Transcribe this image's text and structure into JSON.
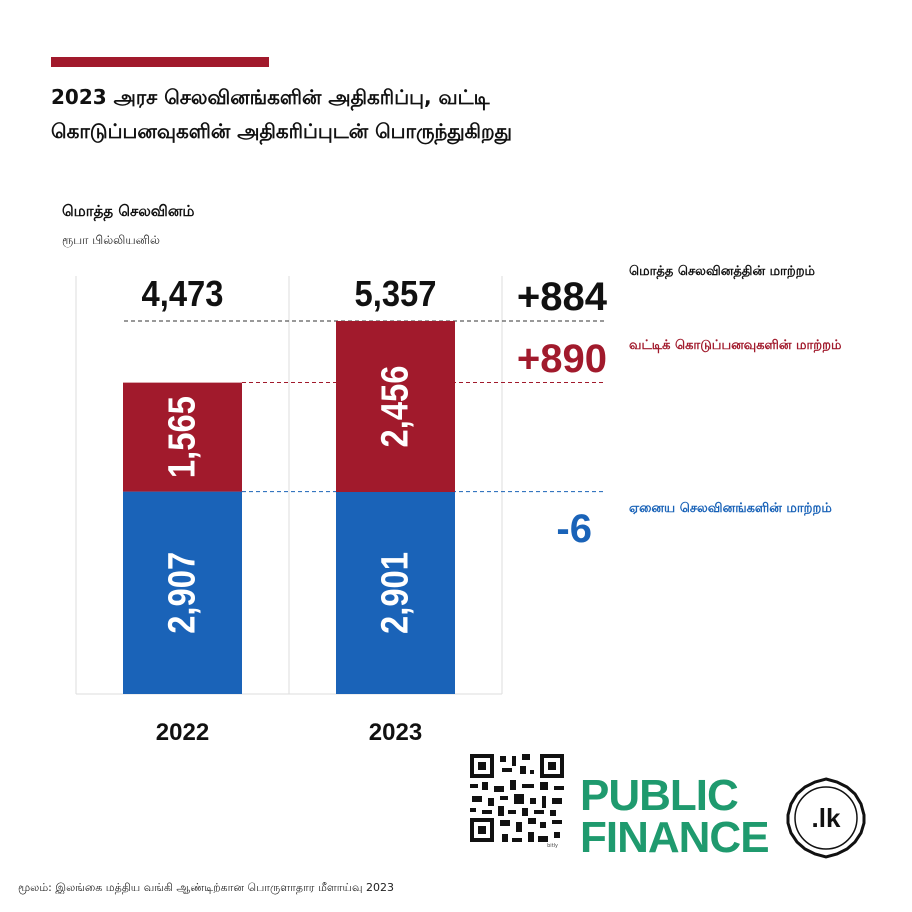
{
  "header": {
    "title": "2023 அரச செலவினங்களின் அதிகரிப்பு, வட்டி கொடுப்பனவுகளின் அதிகரிப்புடன் பொருந்துகிறது",
    "metric_label": "மொத்த செலவினம்",
    "unit_label": "ரூபா பில்லியனில்"
  },
  "annotations": {
    "total_label": "மொத்த செலவினத்தின் மாற்றம்",
    "interest_label": "வட்டிக் கொடுப்பனவுகளின் மாற்றம்",
    "other_label": "ஏனைய செலவினங்களின் மாற்றம்"
  },
  "footer": {
    "source": "மூலம்: இலங்கை மத்திய வங்கி ஆண்டிற்கான பொருளாதார மீளாய்வு 2023",
    "logo_text_1": "PUBLIC",
    "logo_text_2": "FINANCE",
    "logo_badge": ".lk",
    "qr_caption": "bitly"
  },
  "colors": {
    "accent": "#a11a2c",
    "interest": "#a11a2c",
    "other": "#1a63b8",
    "logo": "#1f9a6e"
  },
  "chart_data": {
    "type": "bar",
    "stacked": true,
    "categories": [
      "2022",
      "2023"
    ],
    "series": [
      {
        "name": "other",
        "values": [
          2907,
          2901
        ]
      },
      {
        "name": "interest",
        "values": [
          1565,
          2456
        ]
      }
    ],
    "bar_labels": {
      "other": [
        "2,907",
        "2,901"
      ],
      "interest": [
        "1,565",
        "2,456"
      ]
    },
    "totals": [
      4473,
      5357
    ],
    "total_labels": [
      "4,473",
      "5,357"
    ],
    "changes": {
      "total": "+884",
      "interest": "+890",
      "other": "-6"
    },
    "ylim": [
      0,
      5357
    ],
    "grid": false
  }
}
